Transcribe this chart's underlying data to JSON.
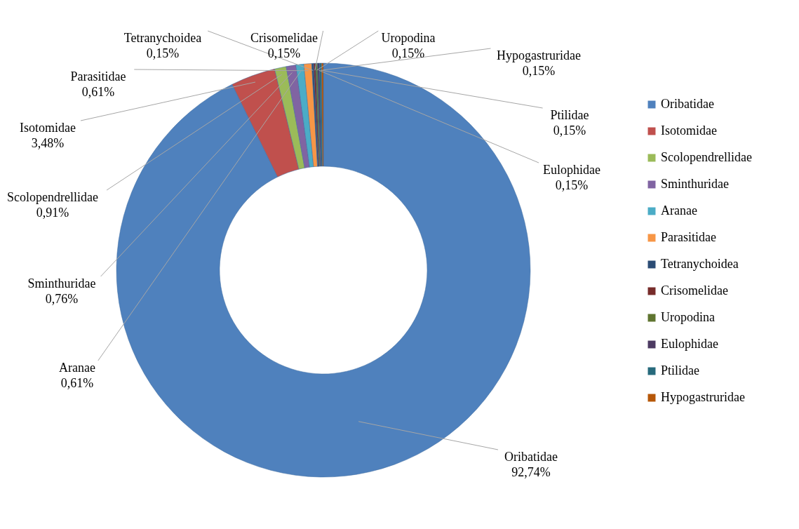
{
  "chart_data": {
    "type": "donut",
    "categories": [
      "Oribatidae",
      "Isotomidae",
      "Scolopendrellidae",
      "Sminthuridae",
      "Aranae",
      "Parasitidae",
      "Tetranychoidea",
      "Crisomelidae",
      "Uropodina",
      "Eulophidae",
      "Ptilidae",
      "Hypogastruridae"
    ],
    "values": [
      92.74,
      3.48,
      0.91,
      0.76,
      0.61,
      0.61,
      0.15,
      0.15,
      0.15,
      0.15,
      0.15,
      0.15
    ],
    "value_labels": [
      "92,74%",
      "3,48%",
      "0,91%",
      "0,76%",
      "0,61%",
      "0,61%",
      "0,15%",
      "0,15%",
      "0,15%",
      "0,15%",
      "0,15%",
      "0,15%"
    ],
    "colors": [
      "#4f81bd",
      "#c0504d",
      "#9bbb59",
      "#8064a2",
      "#4bacc6",
      "#f79646",
      "#2c4d75",
      "#772c2a",
      "#5f7530",
      "#4d3b62",
      "#276a7c",
      "#b65708"
    ],
    "legend": "right"
  }
}
